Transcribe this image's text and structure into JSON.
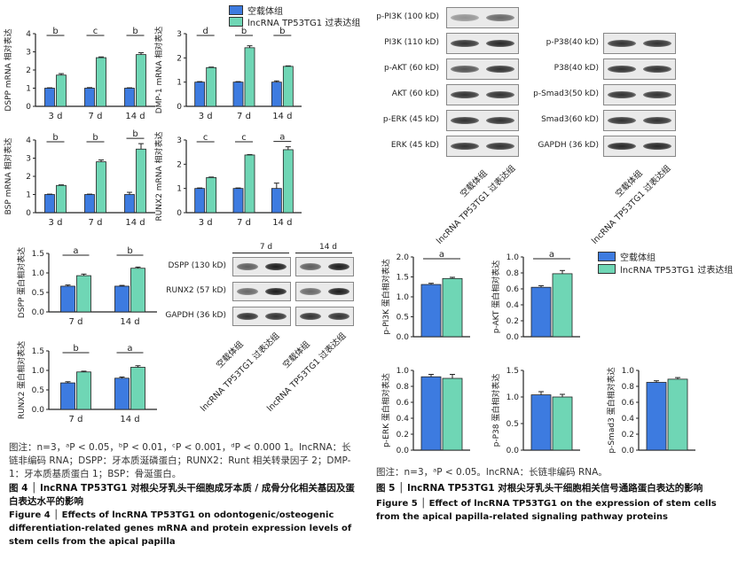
{
  "colors": {
    "blue": "#3d7be0",
    "teal": "#6fd6b5",
    "axis": "#222"
  },
  "legend": {
    "ctrl": "空载体组",
    "oe": "lncRNA TP53TG1 过表达组"
  },
  "fig4": {
    "blot_header_7d": "7 d",
    "blot_header_14d": "14 d",
    "blot_rows": [
      "DSPP (130 kD)",
      "RUNX2 (57 kD)",
      "GAPDH (36 kD)"
    ],
    "blot_cols": [
      "空载体组",
      "lncRNA TP53TG1 过表达组",
      "空载体组",
      "lncRNA TP53TG1 过表达组"
    ],
    "note": "图注：n=3，ᵃP < 0.05，ᵇP < 0.01，ᶜP < 0.001，ᵈP < 0.000 1。lncRNA：长链非编码 RNA；DSPP：牙本质涎磷蛋白；RUNX2：Runt 相关转录因子 2；DMP-1：牙本质基质蛋白 1；BSP：骨涎蛋白。",
    "title_cn": "图 4 │ lncRNA TP53TG1 对根尖牙乳头干细胞成牙本质 / 成骨分化相关基因及蛋白表达水平的影响",
    "title_en": "Figure 4 │ Effects of lncRNA TP53TG1 on odontogenic/osteogenic differentiation-related genes mRNA and protein expression levels of stem cells from the apical papilla"
  },
  "fig5": {
    "blot_left": [
      "p-PI3K (100 kD)",
      "PI3K (110 kD)",
      "p-AKT (60 kD)",
      "AKT (60 kD)",
      "p-ERK (45 kD)",
      "ERK (45 kD)"
    ],
    "blot_right": [
      "p-P38(40 kD)",
      "P38(40 kD)",
      "p-Smad3(50 kD)",
      "Smad3(60 kD)",
      "GAPDH (36 kD)"
    ],
    "blot_cols": [
      "空载体组",
      "lncRNA TP53TG1 过表达组"
    ],
    "note": "图注：n=3，ᵃP < 0.05。lncRNA：长链非编码 RNA。",
    "title_cn": "图 5 │ lncRNA TP53TG1 对根尖牙乳头干细胞相关信号通路蛋白表达的影响",
    "title_en": "Figure 5 │ Effect of lncRNA TP53TG1 on the expression of stem cells from the apical papilla-related signaling pathway proteins"
  },
  "chart_data": [
    {
      "id": "dspp",
      "type": "bar",
      "ylabel": "DSPP mRNA 相对表达",
      "categories": [
        "3 d",
        "7 d",
        "14 d"
      ],
      "ylim": [
        0,
        4
      ],
      "yticks": [
        0,
        1,
        2,
        3,
        4
      ],
      "series": [
        {
          "name": "空载体组",
          "values": [
            1.0,
            1.0,
            1.0
          ]
        },
        {
          "name": "lncRNA TP53TG1 过表达组",
          "values": [
            1.72,
            2.68,
            2.85
          ]
        }
      ],
      "errors": [
        [
          0.02,
          0.03,
          0.02
        ],
        [
          0.08,
          0.04,
          0.1
        ]
      ],
      "sig": [
        "b",
        "c",
        "b"
      ]
    },
    {
      "id": "dmp1",
      "type": "bar",
      "ylabel": "DMP-1 mRNA 相对表达",
      "categories": [
        "3 d",
        "7 d",
        "14 d"
      ],
      "ylim": [
        0,
        3
      ],
      "yticks": [
        0,
        1,
        2,
        3
      ],
      "series": [
        {
          "name": "空载体组",
          "values": [
            1.0,
            1.0,
            1.0
          ]
        },
        {
          "name": "lncRNA TP53TG1 过表达组",
          "values": [
            1.6,
            2.42,
            1.65
          ]
        }
      ],
      "errors": [
        [
          0.02,
          0.02,
          0.05
        ],
        [
          0.02,
          0.08,
          0.02
        ]
      ],
      "sig": [
        "d",
        "b",
        "b"
      ]
    },
    {
      "id": "bsp",
      "type": "bar",
      "ylabel": "BSP mRNA 相对表达",
      "categories": [
        "3 d",
        "7 d",
        "14 d"
      ],
      "ylim": [
        0,
        4
      ],
      "yticks": [
        0,
        1,
        2,
        3,
        4
      ],
      "series": [
        {
          "name": "空载体组",
          "values": [
            1.0,
            1.0,
            1.0
          ]
        },
        {
          "name": "lncRNA TP53TG1 过表达组",
          "values": [
            1.5,
            2.8,
            3.5
          ]
        }
      ],
      "errors": [
        [
          0.02,
          0.02,
          0.12
        ],
        [
          0.03,
          0.1,
          0.3
        ]
      ],
      "sig": [
        "b",
        "b",
        "b"
      ]
    },
    {
      "id": "runx2m",
      "type": "bar",
      "ylabel": "RUNX2 mRNA 相对表达",
      "categories": [
        "3 d",
        "7 d",
        "14 d"
      ],
      "ylim": [
        0,
        3
      ],
      "yticks": [
        0,
        1,
        2,
        3
      ],
      "series": [
        {
          "name": "空载体组",
          "values": [
            1.0,
            1.0,
            1.0
          ]
        },
        {
          "name": "lncRNA TP53TG1 过表达组",
          "values": [
            1.45,
            2.38,
            2.6
          ]
        }
      ],
      "errors": [
        [
          0.02,
          0.02,
          0.22
        ],
        [
          0.02,
          0.02,
          0.12
        ]
      ],
      "sig": [
        "c",
        "c",
        "a"
      ]
    },
    {
      "id": "dsppp",
      "type": "bar",
      "ylabel": "DSPP 蛋白相对表达",
      "categories": [
        "7 d",
        "14 d"
      ],
      "ylim": [
        0,
        1.5
      ],
      "yticks": [
        0,
        0.5,
        1.0,
        1.5
      ],
      "series": [
        {
          "name": "空载体组",
          "values": [
            0.66,
            0.66
          ]
        },
        {
          "name": "lncRNA TP53TG1 过表达组",
          "values": [
            0.93,
            1.12
          ]
        }
      ],
      "errors": [
        [
          0.03,
          0.02
        ],
        [
          0.04,
          0.03
        ]
      ],
      "sig": [
        "a",
        "b"
      ]
    },
    {
      "id": "runx2p",
      "type": "bar",
      "ylabel": "RUNX2 蛋白相对表达",
      "categories": [
        "7 d",
        "14 d"
      ],
      "ylim": [
        0,
        1.5
      ],
      "yticks": [
        0,
        0.5,
        1.0,
        1.5
      ],
      "series": [
        {
          "name": "空载体组",
          "values": [
            0.68,
            0.8
          ]
        },
        {
          "name": "lncRNA TP53TG1 过表达组",
          "values": [
            0.96,
            1.08
          ]
        }
      ],
      "errors": [
        [
          0.03,
          0.03
        ],
        [
          0.02,
          0.04
        ]
      ],
      "sig": [
        "b",
        "a"
      ]
    },
    {
      "id": "ppi3k",
      "type": "bar",
      "ylabel": "p-PI3K 蛋白相对表达",
      "categories": [
        ""
      ],
      "ylim": [
        0,
        2.0
      ],
      "yticks": [
        0,
        0.5,
        1.0,
        1.5,
        2.0
      ],
      "series": [
        {
          "name": "空载体组",
          "values": [
            1.31
          ]
        },
        {
          "name": "lncRNA TP53TG1 过表达组",
          "values": [
            1.46
          ]
        }
      ],
      "errors": [
        [
          0.03
        ],
        [
          0.03
        ]
      ],
      "sig": [
        "a"
      ]
    },
    {
      "id": "pakt",
      "type": "bar",
      "ylabel": "p-AKT 蛋白相对表达",
      "categories": [
        ""
      ],
      "ylim": [
        0,
        1.0
      ],
      "yticks": [
        0,
        0.2,
        0.4,
        0.6,
        0.8,
        1.0
      ],
      "series": [
        {
          "name": "空载体组",
          "values": [
            0.62
          ]
        },
        {
          "name": "lncRNA TP53TG1 过表达组",
          "values": [
            0.79
          ]
        }
      ],
      "errors": [
        [
          0.02
        ],
        [
          0.04
        ]
      ],
      "sig": [
        "a"
      ]
    },
    {
      "id": "perk",
      "type": "bar",
      "ylabel": "p-ERK 蛋白相对表达",
      "categories": [
        ""
      ],
      "ylim": [
        0,
        1.0
      ],
      "yticks": [
        0,
        0.2,
        0.4,
        0.6,
        0.8,
        1.0
      ],
      "series": [
        {
          "name": "空载体组",
          "values": [
            0.92
          ]
        },
        {
          "name": "lncRNA TP53TG1 过表达组",
          "values": [
            0.9
          ]
        }
      ],
      "errors": [
        [
          0.03
        ],
        [
          0.05
        ]
      ],
      "sig": [
        ""
      ]
    },
    {
      "id": "pp38",
      "type": "bar",
      "ylabel": "p-P38 蛋白相对表达",
      "categories": [
        ""
      ],
      "ylim": [
        0,
        1.5
      ],
      "yticks": [
        0,
        0.5,
        1.0,
        1.5
      ],
      "series": [
        {
          "name": "空载体组",
          "values": [
            1.04
          ]
        },
        {
          "name": "lncRNA TP53TG1 过表达组",
          "values": [
            1.0
          ]
        }
      ],
      "errors": [
        [
          0.06
        ],
        [
          0.05
        ]
      ],
      "sig": [
        ""
      ]
    },
    {
      "id": "psmad3",
      "type": "bar",
      "ylabel": "p-Smad3 蛋白相对表达",
      "categories": [
        ""
      ],
      "ylim": [
        0,
        1.0
      ],
      "yticks": [
        0,
        0.2,
        0.4,
        0.6,
        0.8,
        1.0
      ],
      "series": [
        {
          "name": "空载体组",
          "values": [
            0.85
          ]
        },
        {
          "name": "lncRNA TP53TG1 过表达组",
          "values": [
            0.89
          ]
        }
      ],
      "errors": [
        [
          0.02
        ],
        [
          0.02
        ]
      ],
      "sig": [
        ""
      ]
    }
  ]
}
